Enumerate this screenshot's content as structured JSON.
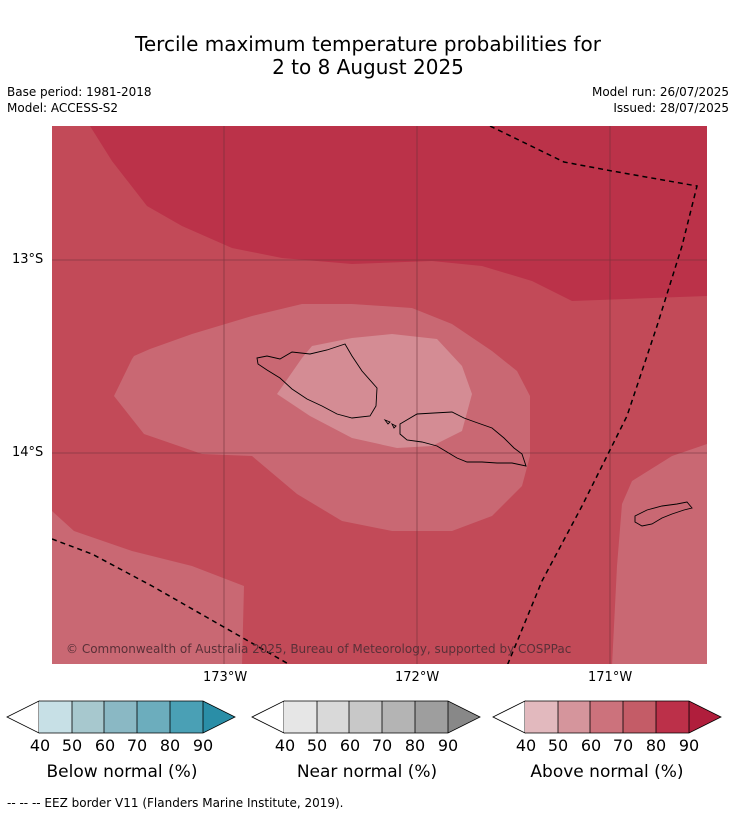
{
  "title_line1": "Tercile maximum temperature probabilities for",
  "title_line2": "2 to 8 August 2025",
  "meta_left": [
    "Base period: 1981-2018",
    "Model: ACCESS-S2"
  ],
  "meta_right": [
    "Model run: 26/07/2025",
    "Issued: 28/07/2025"
  ],
  "lat_ticks": [
    "13°S",
    "14°S"
  ],
  "lon_ticks": [
    "173°W",
    "172°W",
    "171°W"
  ],
  "copyright": "© Commonwealth of Australia 2025, Bureau of Meteorology, supported by COSPPac",
  "colorbars": [
    {
      "label": "Below normal (%)",
      "ticks": [
        "40",
        "50",
        "60",
        "70",
        "80",
        "90"
      ],
      "colors": [
        "#c7e0e6",
        "#a7c8ce",
        "#8ab8c4",
        "#6cadbd",
        "#4aa0b5",
        "#2a8ea7"
      ]
    },
    {
      "label": "Near normal (%)",
      "ticks": [
        "40",
        "50",
        "60",
        "70",
        "80",
        "90"
      ],
      "colors": [
        "#e6e6e6",
        "#d9d9d9",
        "#c8c8c8",
        "#b4b4b4",
        "#9e9e9e",
        "#888888"
      ]
    },
    {
      "label": "Above normal (%)",
      "ticks": [
        "40",
        "50",
        "60",
        "70",
        "80",
        "90"
      ],
      "colors": [
        "#e2b9be",
        "#d5959c",
        "#cc727c",
        "#c45c67",
        "#bc3049",
        "#b01e3c"
      ]
    }
  ],
  "map_colors": {
    "c80": "#bb3249",
    "c70": "#c24a58",
    "c60": "#c96873",
    "c50": "#d48c94"
  },
  "footer": "--  --  -- EEZ border V11 (Flanders Marine Institute, 2019)."
}
